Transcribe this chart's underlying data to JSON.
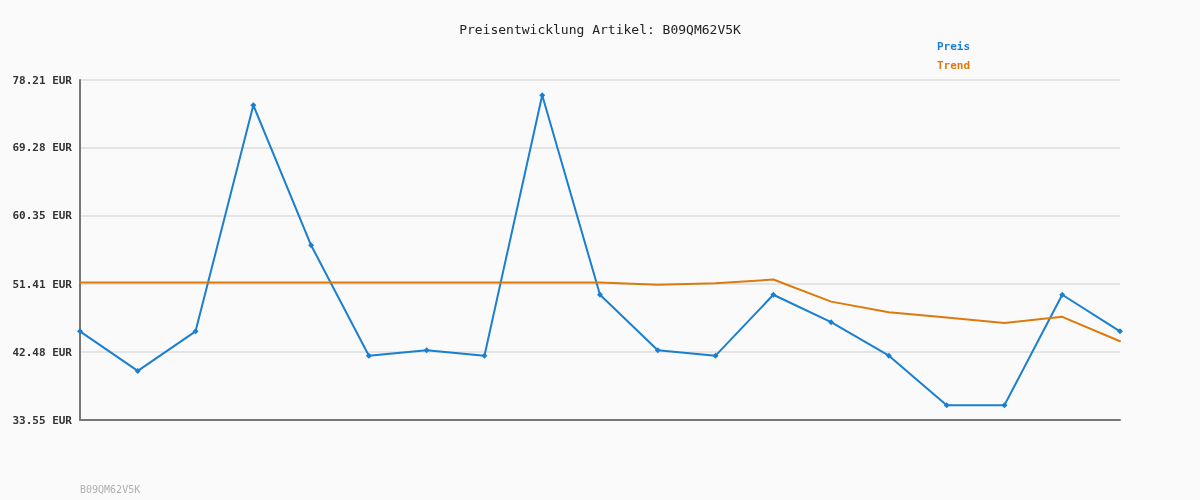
{
  "chart_data": {
    "type": "line",
    "title": "Preisentwicklung Artikel: B09QM62V5K",
    "categories": [
      null,
      null,
      null,
      null,
      null,
      null,
      null,
      null,
      null,
      null,
      null,
      null,
      null,
      null,
      null,
      null,
      null,
      null,
      null
    ],
    "series": [
      {
        "name": "Preis",
        "color": "#1a7fcf",
        "marker": "diamond",
        "values": [
          45.2,
          40.0,
          45.2,
          74.9,
          56.5,
          42.0,
          42.7,
          42.0,
          76.2,
          50.0,
          42.7,
          42.0,
          50.0,
          46.4,
          42.0,
          35.5,
          35.5,
          50.0,
          45.2
        ]
      },
      {
        "name": "Trend",
        "color": "#dd7a0c",
        "marker": "none",
        "values": [
          51.6,
          51.6,
          51.6,
          51.6,
          51.6,
          51.6,
          51.6,
          51.6,
          51.6,
          51.6,
          51.3,
          51.5,
          52.0,
          49.1,
          47.7,
          47.0,
          46.3,
          47.1,
          43.9
        ]
      }
    ],
    "ylim": [
      33.55,
      78.21
    ],
    "yticks": [
      {
        "value": 33.55,
        "label": "33.55 EUR"
      },
      {
        "value": 42.48,
        "label": "42.48 EUR"
      },
      {
        "value": 51.41,
        "label": "51.41 EUR"
      },
      {
        "value": 60.35,
        "label": "60.35 EUR"
      },
      {
        "value": 69.28,
        "label": "69.28 EUR"
      },
      {
        "value": 78.21,
        "label": "78.21 EUR"
      }
    ],
    "tick_labels": "y",
    "grid": "y",
    "legend": "top right",
    "line_style": "solid",
    "annotations": [
      "B09QM62V5K"
    ]
  }
}
